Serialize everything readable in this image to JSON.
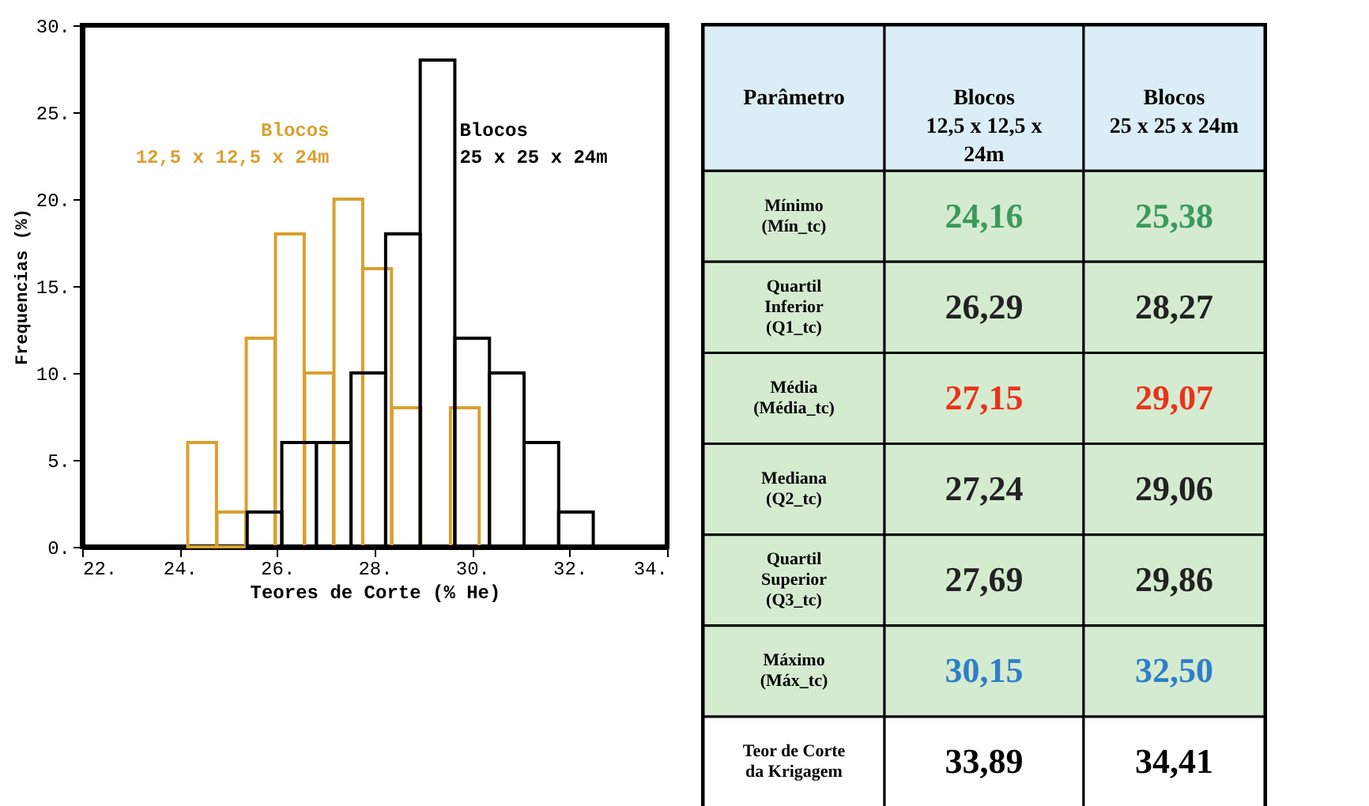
{
  "chart_data": [
    {
      "type": "bar",
      "xlabel": "Teores de Corte (% He)",
      "ylabel": "Frequencias (%)",
      "xlim": [
        22,
        34
      ],
      "xticks": [
        {
          "value": 22,
          "label": "22."
        },
        {
          "value": 24,
          "label": "24."
        },
        {
          "value": 26,
          "label": "26."
        },
        {
          "value": 28,
          "label": "28."
        },
        {
          "value": 30,
          "label": "30."
        },
        {
          "value": 32,
          "label": "32."
        },
        {
          "value": 34,
          "label": "34."
        }
      ],
      "ylim": [
        0,
        30
      ],
      "yticks": [
        {
          "value": 0,
          "label": "0."
        },
        {
          "value": 5,
          "label": "5."
        },
        {
          "value": 10,
          "label": "10."
        },
        {
          "value": 15,
          "label": "15."
        },
        {
          "value": 20,
          "label": "20."
        },
        {
          "value": 25,
          "label": "25."
        },
        {
          "value": 30,
          "label": "30."
        }
      ],
      "grid": false,
      "series": [
        {
          "name": "Blocos 12,5 x 12,5 x 24m",
          "color": "#d9a030",
          "x": [
            24.46,
            25.06,
            25.66,
            26.26,
            26.86,
            27.46,
            28.05,
            28.65,
            29.25,
            29.85
          ],
          "values": [
            6,
            2,
            12,
            18,
            10,
            20,
            16,
            8,
            null,
            8
          ]
        },
        {
          "name": "Blocos 25 x 25 x 24m",
          "color": "#000000",
          "x": [
            25.74,
            26.45,
            27.16,
            27.87,
            28.58,
            29.29,
            30.0,
            30.71,
            31.42,
            32.13
          ],
          "values": [
            2,
            6,
            6,
            10,
            18,
            28,
            12,
            10,
            6,
            2
          ]
        }
      ]
    },
    {
      "type": "other",
      "ylabel": "Parâmetro",
      "categories": [
        "Blocos\n12,5 x 12,5 x\n24m",
        "Blocos\n25 x 25 x 24m"
      ],
      "y_categories": [
        "Mínimo\n(Mín_tc)",
        "Quartil\nInferior\n(Q1_tc)",
        "Média\n(Média_tc)",
        "Mediana\n(Q2_tc)",
        "Quartil\nSuperior\n(Q3_tc)",
        "Máximo\n(Máx_tc)",
        "Teor de Corte\nda Krigagem"
      ],
      "cell_labels": [
        [
          "24,16",
          "25,38"
        ],
        [
          "26,29",
          "28,27"
        ],
        [
          "27,15",
          "29,07"
        ],
        [
          "27,24",
          "29,06"
        ],
        [
          "27,69",
          "29,86"
        ],
        [
          "30,15",
          "32,50"
        ],
        [
          "33,89",
          "34,41"
        ]
      ],
      "colors": [
        [
          "#3a9a5c",
          "#3a9a5c"
        ],
        [
          "#222222",
          "#222222"
        ],
        [
          "#e8341c",
          "#e8341c"
        ],
        [
          "#222222",
          "#222222"
        ],
        [
          "#222222",
          "#222222"
        ],
        [
          "#2f7fc8",
          "#2f7fc8"
        ],
        [
          "#000000",
          "#000000"
        ]
      ]
    }
  ]
}
